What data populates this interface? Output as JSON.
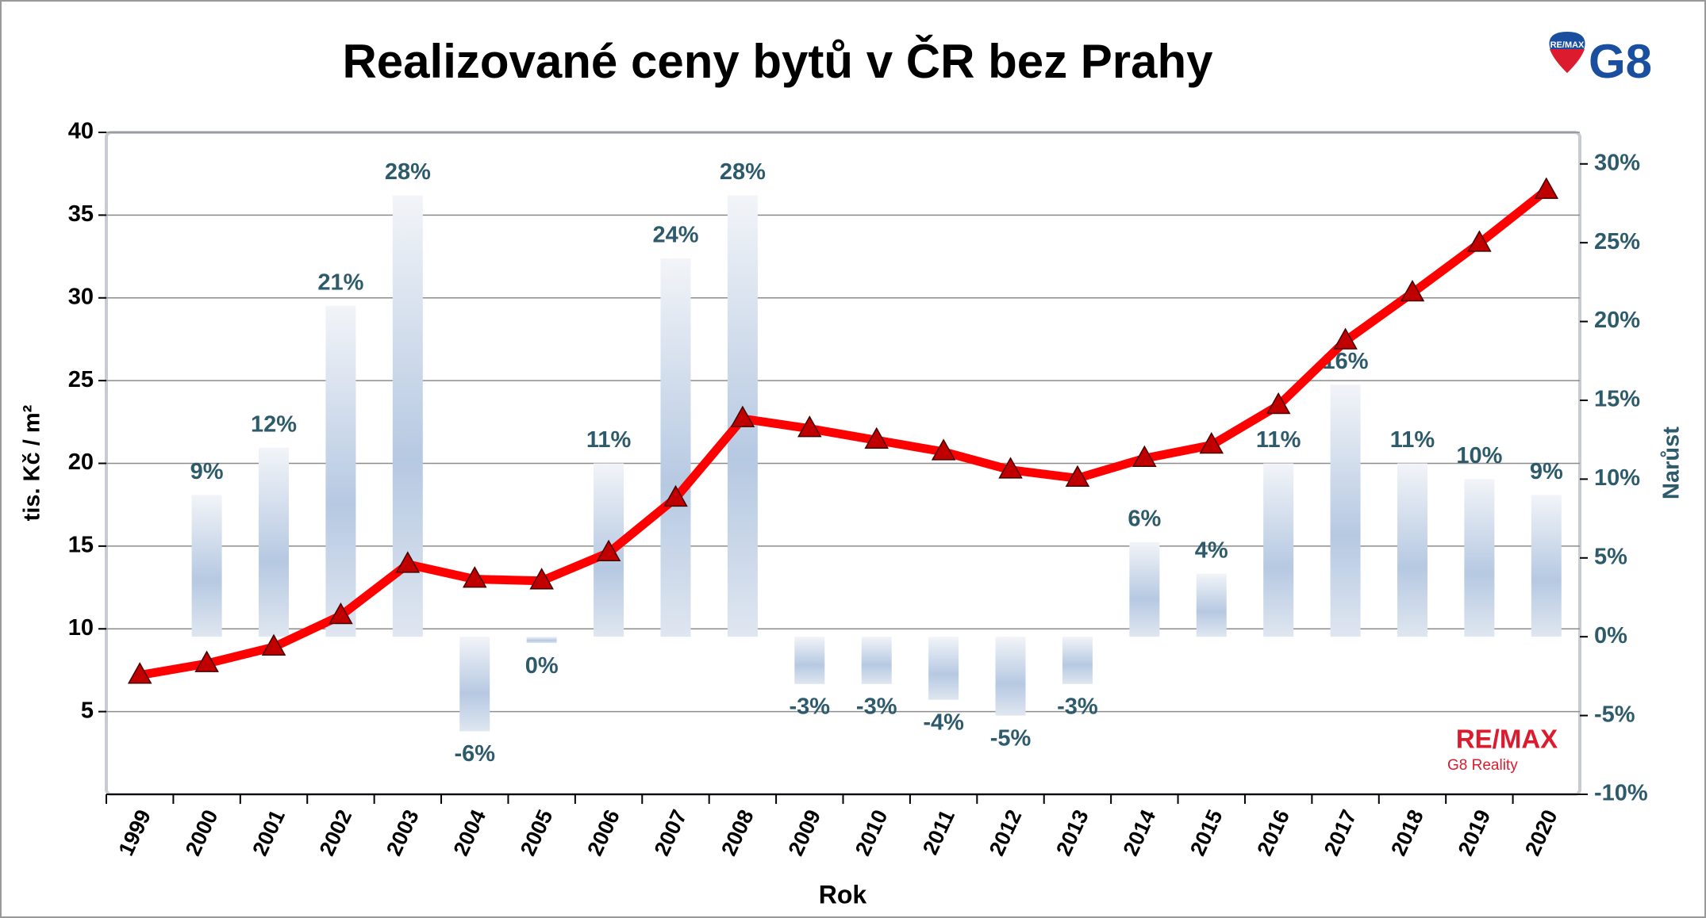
{
  "chart_data": {
    "type": "combo",
    "title": "Realizované ceny bytů v ČR bez Prahy",
    "x_label": "Rok",
    "y_label": "tis. Kč / m²",
    "y2_label": "Narůst",
    "categories": [
      "1999",
      "2000",
      "2001",
      "2002",
      "2003",
      "2004",
      "2005",
      "2006",
      "2007",
      "2008",
      "2009",
      "2010",
      "2011",
      "2012",
      "2013",
      "2014",
      "2015",
      "2016",
      "2017",
      "2018",
      "2019",
      "2020"
    ],
    "series": [
      {
        "type": "bar",
        "axis": "y2",
        "color": "#a9c1de",
        "values": [
          null,
          9,
          12,
          21,
          28,
          -6,
          -0.4,
          11,
          24,
          28,
          -3,
          -3,
          -4,
          -5,
          -3,
          6,
          4,
          11,
          16,
          11,
          10,
          9
        ],
        "value_labels": [
          null,
          "9%",
          "12%",
          "21%",
          "28%",
          "-6%",
          "0%",
          "11%",
          "24%",
          "28%",
          "-3%",
          "-3%",
          "-4%",
          "-5%",
          "-3%",
          "6%",
          "4%",
          "11%",
          "16%",
          "11%",
          "10%",
          "9%"
        ]
      },
      {
        "type": "line",
        "axis": "y",
        "color": "#ff0000",
        "marker_color": "#c00000",
        "values": [
          7.2,
          7.9,
          8.9,
          10.8,
          13.9,
          13.0,
          12.9,
          14.6,
          17.9,
          22.7,
          22.1,
          21.4,
          20.7,
          19.6,
          19.1,
          20.3,
          21.1,
          23.5,
          27.4,
          30.3,
          33.3,
          36.5
        ]
      }
    ],
    "ylim": [
      0,
      40
    ],
    "yticks": [
      5,
      10,
      15,
      20,
      25,
      30,
      35,
      40
    ],
    "y2lim": [
      -10,
      32
    ],
    "y2ticks": [
      {
        "value": -10,
        "label": "-10%"
      },
      {
        "value": -5,
        "label": "-5%"
      },
      {
        "value": 0,
        "label": "0%"
      },
      {
        "value": 5,
        "label": "5%"
      },
      {
        "value": 10,
        "label": "10%"
      },
      {
        "value": 15,
        "label": "15%"
      },
      {
        "value": 20,
        "label": "20%"
      },
      {
        "value": 25,
        "label": "25%"
      },
      {
        "value": 30,
        "label": "30%"
      }
    ],
    "grid": true
  },
  "logos": {
    "top": {
      "brand": "RE/MAX",
      "mark": "G8"
    },
    "bottom": {
      "brand": "RE/MAX",
      "sub": "G8 Reality"
    }
  }
}
